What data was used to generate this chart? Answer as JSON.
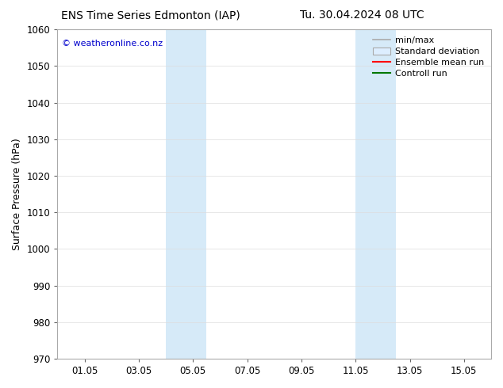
{
  "title_left": "ENS Time Series Edmonton (IAP)",
  "title_right": "Tu. 30.04.2024 08 UTC",
  "ylabel": "Surface Pressure (hPa)",
  "ylim": [
    970,
    1060
  ],
  "yticks": [
    970,
    980,
    990,
    1000,
    1010,
    1020,
    1030,
    1040,
    1050,
    1060
  ],
  "xtick_labels": [
    "01.05",
    "03.05",
    "05.05",
    "07.05",
    "09.05",
    "11.05",
    "13.05",
    "15.05"
  ],
  "xtick_positions": [
    1,
    3,
    5,
    7,
    9,
    11,
    13,
    15
  ],
  "xlim": [
    0,
    16
  ],
  "shaded_bands": [
    {
      "x_start": 4.0,
      "x_end": 5.5,
      "color": "#d6eaf8"
    },
    {
      "x_start": 11.0,
      "x_end": 12.5,
      "color": "#d6eaf8"
    }
  ],
  "watermark": "© weatheronline.co.nz",
  "watermark_color": "#0000cc",
  "legend_items": [
    {
      "label": "min/max",
      "type": "line",
      "color": "#aaaaaa",
      "lw": 1.2
    },
    {
      "label": "Standard deviation",
      "type": "patch",
      "facecolor": "#ddeeff",
      "edgecolor": "#aaaaaa"
    },
    {
      "label": "Ensemble mean run",
      "type": "line",
      "color": "#ff0000",
      "lw": 1.5
    },
    {
      "label": "Controll run",
      "type": "line",
      "color": "#007700",
      "lw": 1.5
    }
  ],
  "bg_color": "#ffffff",
  "plot_bg_color": "#ffffff",
  "spine_color": "#aaaaaa",
  "title_fontsize": 10,
  "axis_label_fontsize": 9,
  "tick_fontsize": 8.5,
  "legend_fontsize": 8
}
